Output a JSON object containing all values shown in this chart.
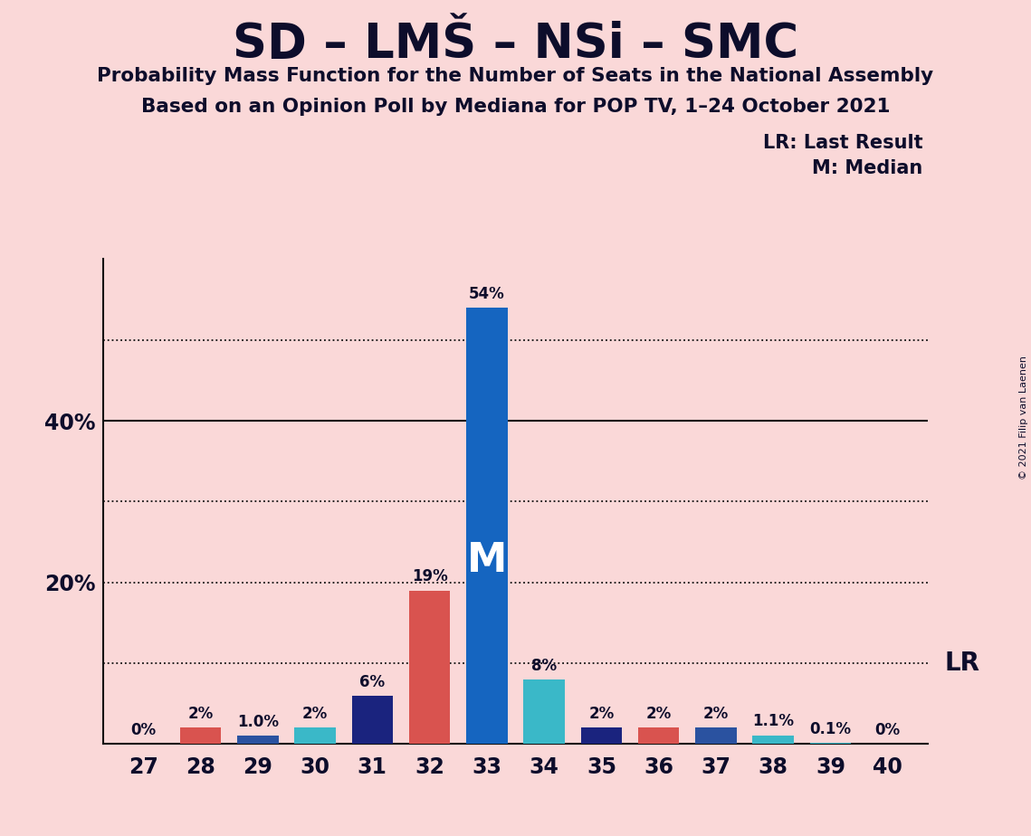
{
  "title": "SD – LMŠ – NSi – SMC",
  "subtitle1": "Probability Mass Function for the Number of Seats in the National Assembly",
  "subtitle2": "Based on an Opinion Poll by Mediana for POP TV, 1–24 October 2021",
  "copyright": "© 2021 Filip van Laenen",
  "seats": [
    27,
    28,
    29,
    30,
    31,
    32,
    33,
    34,
    35,
    36,
    37,
    38,
    39,
    40
  ],
  "values": [
    0.0,
    2.0,
    1.0,
    2.0,
    6.0,
    19.0,
    54.0,
    8.0,
    2.0,
    2.0,
    2.0,
    1.1,
    0.1,
    0.0
  ],
  "labels": [
    "0%",
    "2%",
    "1.0%",
    "2%",
    "6%",
    "19%",
    "54%",
    "8%",
    "2%",
    "2%",
    "2%",
    "1.1%",
    "0.1%",
    "0%"
  ],
  "colors": [
    "#fad8d8",
    "#d9534f",
    "#2a52a0",
    "#3ab8c8",
    "#1a237e",
    "#d9534f",
    "#1565c0",
    "#3ab8c8",
    "#1a237e",
    "#d9534f",
    "#2a52a0",
    "#3ab8c8",
    "#3ab8c8",
    "#fad8d8"
  ],
  "median_seat": 33,
  "lr_value": 10.0,
  "background_color": "#fad8d8",
  "ymax": 60,
  "solid_grid": [
    40
  ],
  "dotted_grid": [
    10,
    20,
    30,
    50
  ],
  "ytick_positions": [
    20,
    40
  ],
  "ytick_labels": [
    "20%",
    "40%"
  ]
}
